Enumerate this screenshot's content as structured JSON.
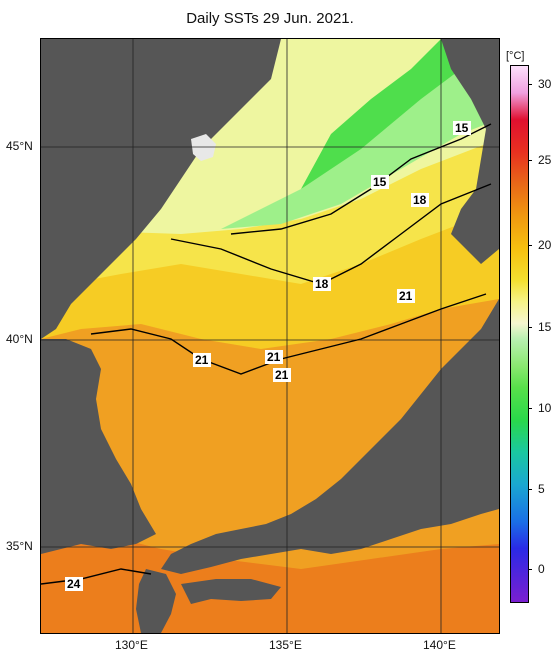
{
  "title": "Daily SSTs 29 Jun. 2021.",
  "colorbar": {
    "unit": "[°C]",
    "ticks": [
      "30",
      "25",
      "20",
      "15",
      "10",
      "5",
      "0"
    ]
  },
  "axes": {
    "lat_labels": [
      "45°N",
      "40°N",
      "35°N"
    ],
    "lon_labels": [
      "130°E",
      "135°E",
      "140°E"
    ]
  },
  "contour_labels": [
    "15",
    "15",
    "18",
    "18",
    "21",
    "21",
    "21",
    "21",
    "24"
  ]
}
